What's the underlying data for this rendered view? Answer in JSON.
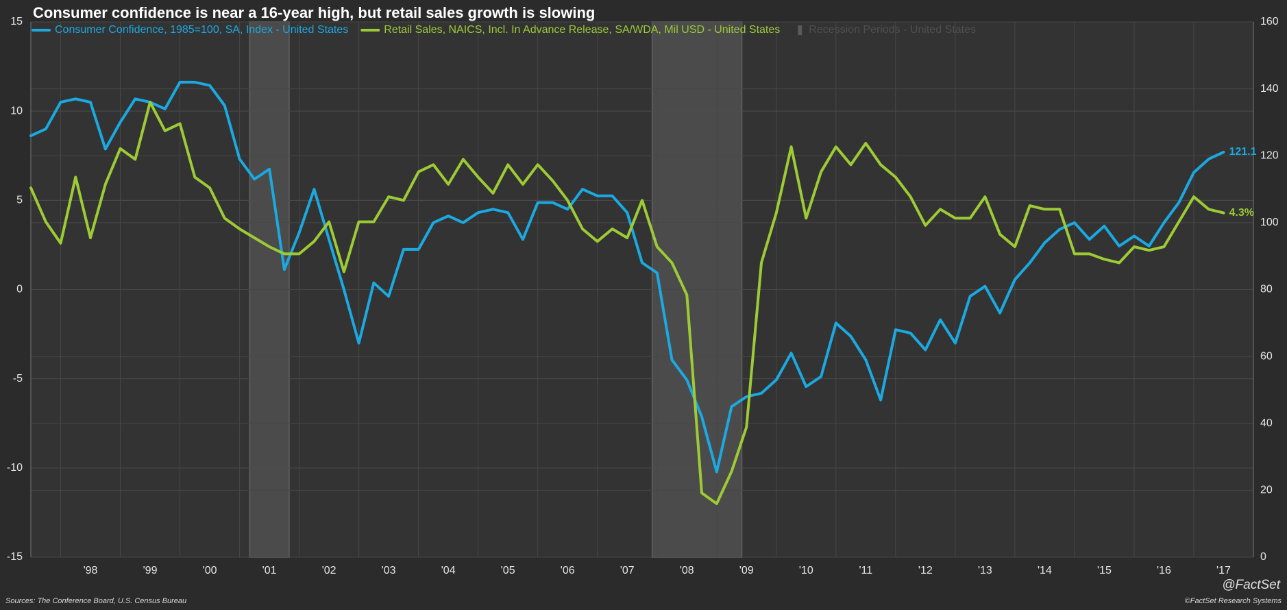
{
  "chart_data": {
    "type": "line",
    "title": "Consumer confidence is near a 16-year high, but retail sales growth is slowing",
    "source": "Sources: The Conference Board, U.S. Census Bureau",
    "copyright": "©FactSet Research Systems",
    "brand": "@FactSet",
    "x": [
      1997.5,
      1997.75,
      1998,
      1998.25,
      1998.5,
      1998.75,
      1999,
      1999.25,
      1999.5,
      1999.75,
      2000,
      2000.25,
      2000.5,
      2000.75,
      2001,
      2001.25,
      2001.5,
      2001.75,
      2002,
      2002.25,
      2002.5,
      2002.75,
      2003,
      2003.25,
      2003.5,
      2003.75,
      2004,
      2004.25,
      2004.5,
      2004.75,
      2005,
      2005.25,
      2005.5,
      2005.75,
      2006,
      2006.25,
      2006.5,
      2006.75,
      2007,
      2007.25,
      2007.5,
      2007.75,
      2008,
      2008.25,
      2008.5,
      2008.75,
      2009,
      2009.25,
      2009.5,
      2009.75,
      2010,
      2010.25,
      2010.5,
      2010.75,
      2011,
      2011.25,
      2011.5,
      2011.75,
      2012,
      2012.25,
      2012.5,
      2012.75,
      2013,
      2013.25,
      2013.5,
      2013.75,
      2014,
      2014.25,
      2014.5,
      2014.75,
      2015,
      2015.25,
      2015.5,
      2015.75,
      2016,
      2016.25,
      2016.5,
      2016.75,
      2017,
      2017.25,
      2017.5
    ],
    "xlim": [
      1997.5,
      2018
    ],
    "xticks": [
      {
        "value": 1998,
        "label": "'98"
      },
      {
        "value": 1999,
        "label": "'99"
      },
      {
        "value": 2000,
        "label": "'00"
      },
      {
        "value": 2001,
        "label": "'01"
      },
      {
        "value": 2002,
        "label": "'02"
      },
      {
        "value": 2003,
        "label": "'03"
      },
      {
        "value": 2004,
        "label": "'04"
      },
      {
        "value": 2005,
        "label": "'05"
      },
      {
        "value": 2006,
        "label": "'06"
      },
      {
        "value": 2007,
        "label": "'07"
      },
      {
        "value": 2008,
        "label": "'08"
      },
      {
        "value": 2009,
        "label": "'09"
      },
      {
        "value": 2010,
        "label": "'10"
      },
      {
        "value": 2011,
        "label": "'11"
      },
      {
        "value": 2012,
        "label": "'12"
      },
      {
        "value": 2013,
        "label": "'13"
      },
      {
        "value": 2014,
        "label": "'14"
      },
      {
        "value": 2015,
        "label": "'15"
      },
      {
        "value": 2016,
        "label": "'16"
      },
      {
        "value": 2017,
        "label": "'17"
      }
    ],
    "ylim": [
      -15,
      15
    ],
    "yticks": [
      -15,
      -10,
      -5,
      0,
      5,
      10,
      15
    ],
    "y2lim": [
      0,
      160
    ],
    "y2ticks": [
      0,
      20,
      40,
      60,
      80,
      100,
      120,
      140,
      160
    ],
    "grid": true,
    "series": [
      {
        "name": "Consumer Confidence, 1985=100, SA, Index - United States",
        "color": "#1ba9e1",
        "axis": "y2",
        "end_label": "121.1",
        "values": [
          126,
          128,
          136,
          137,
          136,
          122,
          130,
          137,
          136,
          134,
          142,
          142,
          141,
          135,
          119,
          113,
          116,
          86,
          97,
          110,
          95,
          80,
          64,
          82,
          78,
          92,
          92,
          100,
          102,
          100,
          103,
          104,
          103,
          95,
          106,
          106,
          104,
          110,
          108,
          108,
          103,
          88,
          85,
          59,
          53,
          42,
          25.5,
          45,
          48,
          49,
          53,
          61,
          51,
          54,
          70,
          66,
          59,
          47,
          68,
          67,
          62,
          71,
          64,
          78,
          81,
          73,
          83,
          88,
          94,
          98,
          100,
          95,
          99,
          93,
          96,
          93,
          100,
          106,
          115,
          119,
          121.1
        ]
      },
      {
        "name": "Retail Sales, NAICS, Incl. In Advance Release, SA/WDA, Mil USD - United States",
        "color": "#9dcb35",
        "axis": "y",
        "end_label": "4.3%",
        "values": [
          5.7,
          3.8,
          2.6,
          6.3,
          2.9,
          5.9,
          7.9,
          7.3,
          10.5,
          8.9,
          9.3,
          6.3,
          5.7,
          4.0,
          3.4,
          2.9,
          2.4,
          2.0,
          2.0,
          2.7,
          3.8,
          1.0,
          3.8,
          3.8,
          5.2,
          5.0,
          6.6,
          7.0,
          5.9,
          7.3,
          6.3,
          5.4,
          7.0,
          5.9,
          7.0,
          6.1,
          5.0,
          3.4,
          2.7,
          3.4,
          2.9,
          5.0,
          2.4,
          1.5,
          -0.3,
          -11.4,
          -12.0,
          -10.2,
          -7.7,
          1.5,
          4.3,
          8.0,
          4.0,
          6.6,
          8.0,
          7.0,
          8.2,
          7.0,
          6.3,
          5.2,
          3.6,
          4.5,
          4.0,
          4.0,
          5.2,
          3.1,
          2.4,
          4.7,
          4.5,
          4.5,
          2.0,
          2.0,
          1.7,
          1.5,
          2.4,
          2.2,
          2.4,
          3.8,
          5.2,
          4.5,
          4.3
        ]
      }
    ],
    "recessions": {
      "name": "Recession Periods - United States",
      "color": "#4b4b4b",
      "ranges": [
        {
          "start": 2001.17,
          "end": 2001.83
        },
        {
          "start": 2007.92,
          "end": 2009.42
        }
      ]
    }
  }
}
